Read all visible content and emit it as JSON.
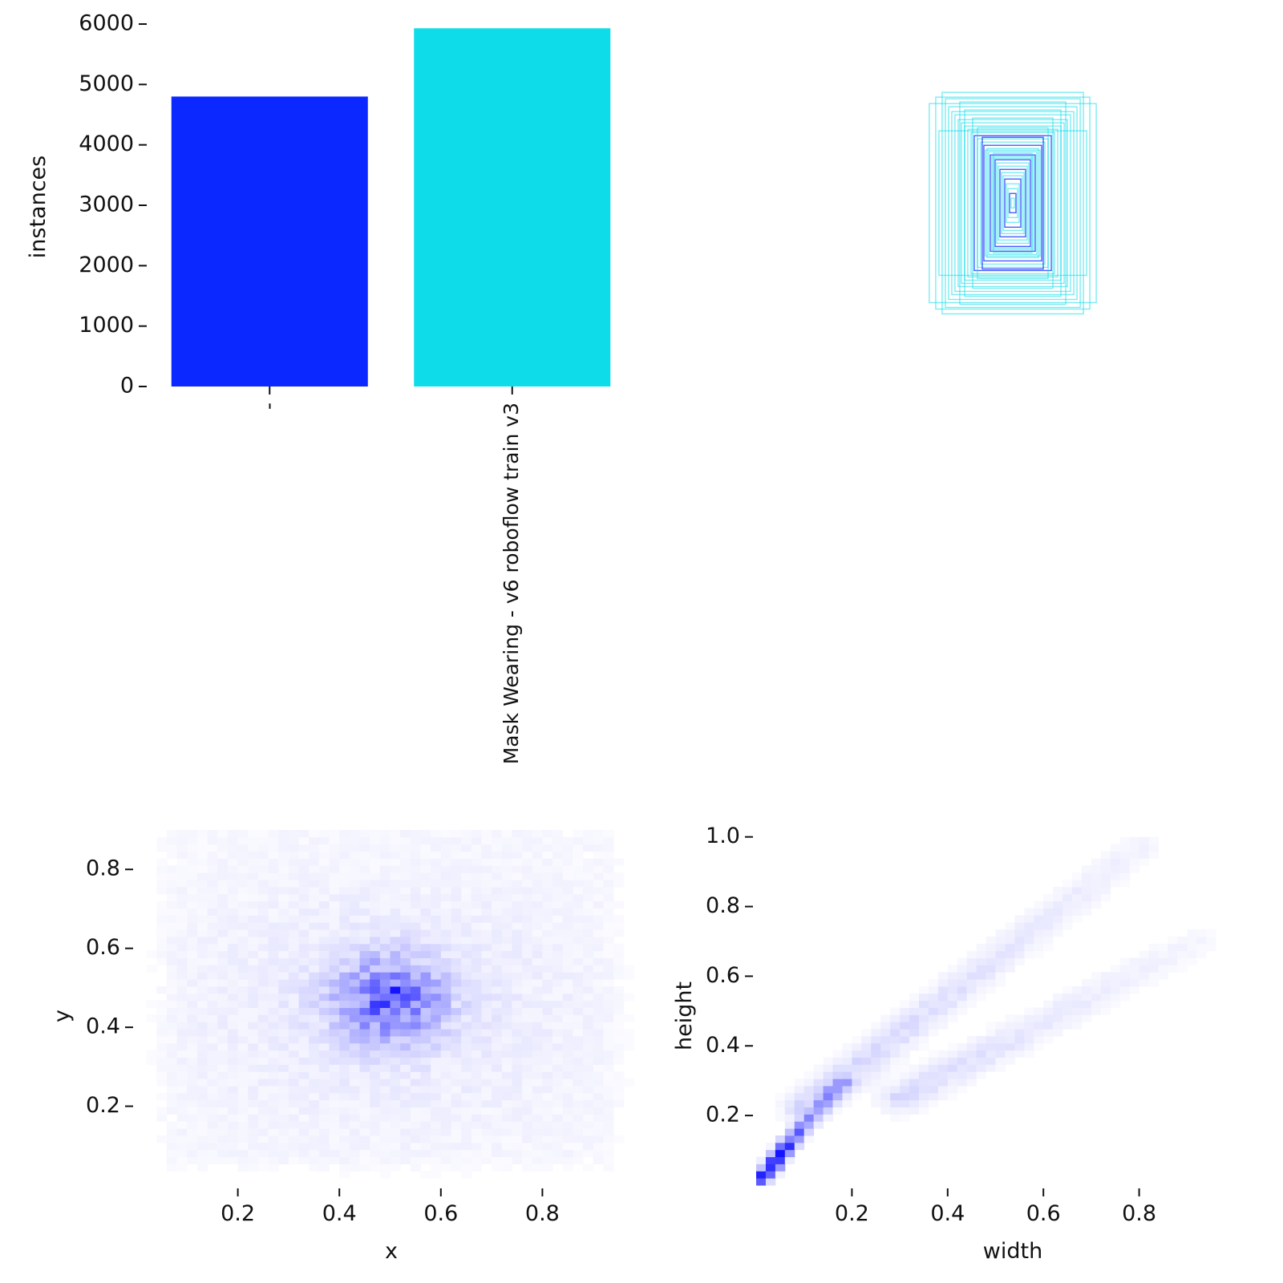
{
  "colors": {
    "class_0": "#0a28ff",
    "class_1": "#0edde9",
    "heatmap_base": "#2b2bff",
    "tick": "#111111"
  },
  "chart_data": [
    {
      "type": "bar",
      "name": "class-instances",
      "categories": [
        "-",
        "Mask Wearing - v6 roboflow train v3"
      ],
      "values": [
        4800,
        5930
      ],
      "colors": [
        "#0a28ff",
        "#0edde9"
      ],
      "ylabel": "instances",
      "ylim": [
        0,
        6000
      ],
      "yticks": [
        "0",
        "1000",
        "2000",
        "3000",
        "4000",
        "5000",
        "6000"
      ],
      "grid": false
    },
    {
      "type": "other",
      "name": "box-overlay",
      "description_kind": "label rectangles centred at (0.5, 0.5), drawn with their normalized width and height",
      "box_sizes": [
        [
          0.44,
          0.69
        ],
        [
          0.42,
          0.65
        ],
        [
          0.4,
          0.6
        ],
        [
          0.38,
          0.57
        ],
        [
          0.36,
          0.55
        ],
        [
          0.34,
          0.52
        ],
        [
          0.32,
          0.5
        ],
        [
          0.3,
          0.48
        ],
        [
          0.28,
          0.46
        ],
        [
          0.26,
          0.44
        ],
        [
          0.24,
          0.42
        ],
        [
          0.22,
          0.4
        ],
        [
          0.2,
          0.38
        ],
        [
          0.18,
          0.36
        ],
        [
          0.16,
          0.34
        ],
        [
          0.15,
          0.32
        ],
        [
          0.14,
          0.3
        ],
        [
          0.13,
          0.29
        ],
        [
          0.12,
          0.28
        ],
        [
          0.11,
          0.27
        ],
        [
          0.1,
          0.25
        ],
        [
          0.09,
          0.23
        ],
        [
          0.08,
          0.21
        ],
        [
          0.07,
          0.19
        ],
        [
          0.06,
          0.17
        ],
        [
          0.05,
          0.15
        ],
        [
          0.04,
          0.12
        ],
        [
          0.03,
          0.09
        ],
        [
          0.02,
          0.06
        ],
        [
          0.01,
          0.03
        ],
        [
          0.52,
          0.62
        ],
        [
          0.48,
          0.66
        ],
        [
          0.33,
          0.63
        ],
        [
          0.3,
          0.58
        ],
        [
          0.46,
          0.45
        ],
        [
          0.25,
          0.53
        ],
        [
          0.22,
          0.47
        ],
        [
          0.19,
          0.41
        ],
        [
          0.17,
          0.33
        ],
        [
          0.12,
          0.31
        ]
      ],
      "colors": [
        "#0a28ff",
        "#0edde9"
      ],
      "grid": false
    },
    {
      "type": "heatmap",
      "name": "center-distribution",
      "xlabel": "x",
      "ylabel": "y",
      "xlim": [
        0.0,
        1.0
      ],
      "ylim": [
        0.0,
        0.9
      ],
      "xticks": [
        0.2,
        0.4,
        0.6,
        0.8
      ],
      "yticks": [
        0.2,
        0.4,
        0.6,
        0.8
      ],
      "bins": [
        50,
        50
      ],
      "density_peaks": [
        {
          "x": 0.5,
          "y": 0.47,
          "sx": 0.07,
          "sy": 0.07,
          "weight": 1.0
        },
        {
          "x": 0.5,
          "y": 0.45,
          "sx": 0.28,
          "sy": 0.22,
          "weight": 0.12
        }
      ],
      "hottest_cell": {
        "x": 0.51,
        "y": 0.5
      },
      "colors": [
        "#ffffff",
        "#2b2bff",
        "#0000ff"
      ],
      "grid": false
    },
    {
      "type": "heatmap",
      "name": "size-distribution",
      "xlabel": "width",
      "ylabel": "height",
      "xlim": [
        0.0,
        1.0
      ],
      "ylim": [
        0.0,
        1.02
      ],
      "xticks": [
        0.2,
        0.4,
        0.6,
        0.8
      ],
      "yticks": [
        0.2,
        0.4,
        0.6,
        0.8,
        1.0
      ],
      "bins": [
        50,
        50
      ],
      "ridges": [
        {
          "x_from": 0.01,
          "y_from": 0.02,
          "x_to": 0.18,
          "y_to": 0.3,
          "peak_x": 0.04,
          "peak_y": 0.07,
          "weight": 1.0
        },
        {
          "x_from": 0.1,
          "y_from": 0.22,
          "x_to": 0.8,
          "y_to": 0.97,
          "weight": 0.18
        },
        {
          "x_from": 0.3,
          "y_from": 0.25,
          "x_to": 0.92,
          "y_to": 0.7,
          "weight": 0.15
        }
      ],
      "colors": [
        "#ffffff",
        "#2b2bff",
        "#0000ff"
      ],
      "grid": false
    }
  ]
}
